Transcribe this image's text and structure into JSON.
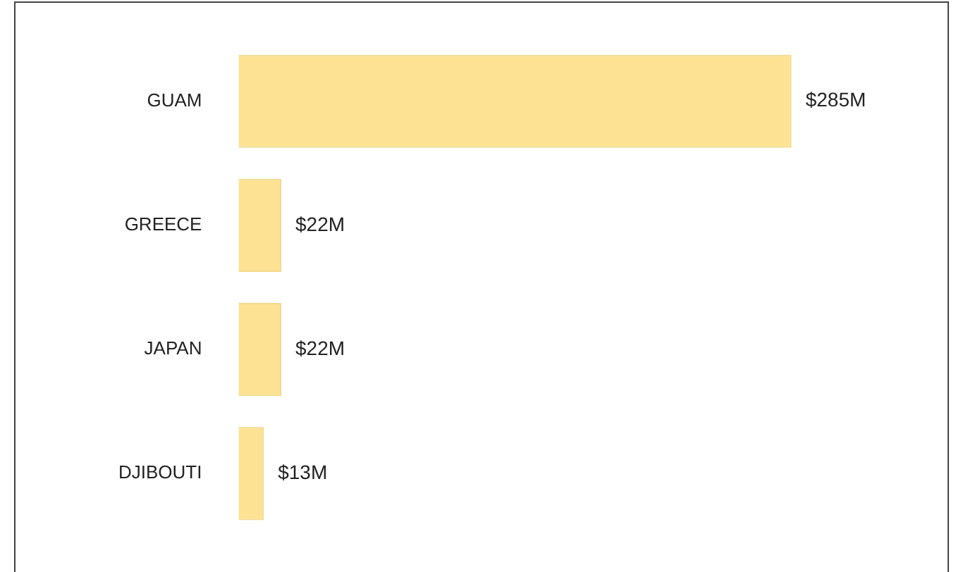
{
  "chart_data": {
    "type": "bar",
    "orientation": "horizontal",
    "categories": [
      "GUAM",
      "GREECE",
      "JAPAN",
      "DJIBOUTI"
    ],
    "values": [
      285,
      22,
      22,
      13
    ],
    "value_labels": [
      "$285M",
      "$22M",
      "$22M",
      "$13M"
    ],
    "color": "#fde293",
    "legend": false,
    "tick_labels": "y"
  }
}
